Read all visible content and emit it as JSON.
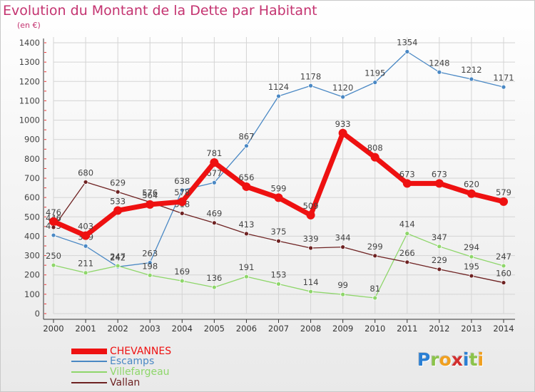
{
  "chart_data": {
    "type": "line",
    "title": "Evolution du Montant de la Dette par Habitant",
    "unit_label": "(en €)",
    "categories": [
      "2000",
      "2001",
      "2002",
      "2003",
      "2004",
      "2005",
      "2006",
      "2007",
      "2008",
      "2009",
      "2010",
      "2011",
      "2012",
      "2013",
      "2014"
    ],
    "ylim": [
      0,
      1400
    ],
    "yticks": [
      0,
      100,
      200,
      300,
      400,
      500,
      600,
      700,
      800,
      900,
      1000,
      1100,
      1200,
      1300,
      1400
    ],
    "grid": true,
    "series": [
      {
        "name": "Escamps",
        "color": "#4a88c4",
        "values": [
          405,
          349,
          242,
          263,
          638,
          677,
          867,
          1124,
          1178,
          1120,
          1195,
          1354,
          1248,
          1212,
          1171
        ]
      },
      {
        "name": "Villefargeau",
        "color": "#8ed66a",
        "values": [
          250,
          211,
          247,
          198,
          169,
          136,
          191,
          153,
          114,
          99,
          81,
          414,
          347,
          294,
          247
        ]
      },
      {
        "name": "Vallan",
        "color": "#6e2222",
        "values": [
          446,
          680,
          629,
          576,
          518,
          469,
          413,
          375,
          339,
          344,
          299,
          266,
          229,
          195,
          160
        ]
      },
      {
        "name": "CHEVANNES",
        "color": "#ee1111",
        "values": [
          476,
          403,
          533,
          564,
          578,
          781,
          656,
          599,
          509,
          933,
          808,
          673,
          673,
          620,
          579
        ]
      }
    ],
    "legend": [
      {
        "name": "CHEVANNES",
        "color": "#ee1111"
      },
      {
        "name": "Escamps",
        "color": "#4a88c4"
      },
      {
        "name": "Villefargeau",
        "color": "#8ed66a"
      },
      {
        "name": "Vallan",
        "color": "#6e2222"
      }
    ]
  },
  "logo": {
    "text": "Proxiti",
    "letters": [
      {
        "ch": "P",
        "color": "#2a7fd4"
      },
      {
        "ch": "r",
        "color": "#8bc34a"
      },
      {
        "ch": "o",
        "color": "#f0a020"
      },
      {
        "ch": "x",
        "color": "#d32f2f"
      },
      {
        "ch": "i",
        "color": "#2a7fd4"
      },
      {
        "ch": "t",
        "color": "#8bc34a"
      },
      {
        "ch": "i",
        "color": "#f0a020"
      }
    ]
  }
}
